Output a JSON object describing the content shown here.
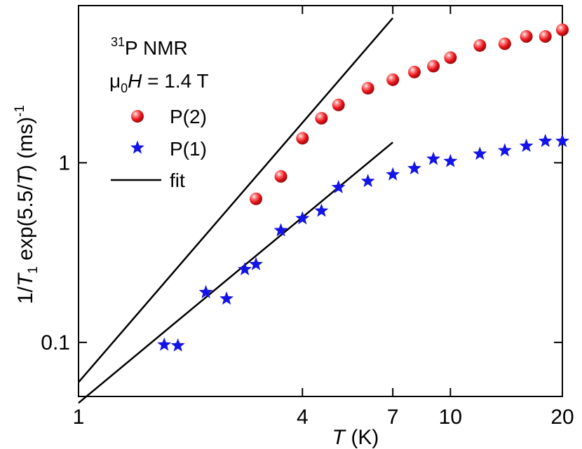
{
  "chart_data": {
    "type": "scatter",
    "x_scale": "log",
    "y_scale": "log",
    "xlim": [
      1,
      20
    ],
    "ylim": [
      0.05,
      7.5
    ],
    "xlabel": {
      "italic": "T",
      "rest": " (K)"
    },
    "ylabel": {
      "p1": "1/",
      "it1": "T",
      "sub1": "1",
      "p2": " exp(5.5/",
      "it2": "T",
      "p3": ") (ms)",
      "sup": "-1"
    },
    "x_ticks": [
      {
        "value": 1,
        "label": "1"
      },
      {
        "value": 4,
        "label": "4"
      },
      {
        "value": 7,
        "label": "7"
      },
      {
        "value": 10,
        "label": "10"
      },
      {
        "value": 20,
        "label": "20"
      }
    ],
    "y_ticks": [
      {
        "value": 0.1,
        "label": "0.1"
      },
      {
        "value": 1,
        "label": "1"
      }
    ],
    "legend_placement": "top-left",
    "annotations": {
      "nmr": {
        "sup": "31",
        "text": "P NMR"
      },
      "field": {
        "mu": "μ",
        "sub": "0",
        "italic": "H",
        "rest": " = 1.4 T"
      }
    },
    "series": [
      {
        "name": "P(2)",
        "marker": "sphere",
        "color": "#e8141b",
        "points": [
          [
            3.0,
            0.63
          ],
          [
            3.5,
            0.84
          ],
          [
            4.0,
            1.37
          ],
          [
            4.5,
            1.77
          ],
          [
            5.0,
            2.1
          ],
          [
            6.0,
            2.6
          ],
          [
            7.0,
            2.9
          ],
          [
            8.0,
            3.2
          ],
          [
            9.0,
            3.45
          ],
          [
            10.0,
            3.85
          ],
          [
            12.0,
            4.5
          ],
          [
            14.0,
            4.6
          ],
          [
            16.0,
            5.05
          ],
          [
            18.0,
            5.05
          ],
          [
            20.0,
            5.5
          ]
        ]
      },
      {
        "name": "P(1)",
        "marker": "star",
        "color": "#1414e6",
        "points": [
          [
            1.7,
            0.097
          ],
          [
            1.85,
            0.096
          ],
          [
            2.2,
            0.19
          ],
          [
            2.5,
            0.175
          ],
          [
            2.8,
            0.255
          ],
          [
            3.0,
            0.272
          ],
          [
            3.5,
            0.42
          ],
          [
            4.0,
            0.49
          ],
          [
            4.5,
            0.54
          ],
          [
            5.0,
            0.73
          ],
          [
            6.0,
            0.79
          ],
          [
            7.0,
            0.86
          ],
          [
            8.0,
            0.93
          ],
          [
            9.0,
            1.05
          ],
          [
            10.0,
            1.02
          ],
          [
            12.0,
            1.12
          ],
          [
            14.0,
            1.17
          ],
          [
            16.0,
            1.24
          ],
          [
            18.0,
            1.32
          ],
          [
            20.0,
            1.32
          ]
        ]
      },
      {
        "name": "fit",
        "marker": "line",
        "color": "#000000",
        "lines": [
          [
            [
              1.0,
              0.06
            ],
            [
              7.0,
              6.4
            ]
          ],
          [
            [
              1.0,
              0.046
            ],
            [
              7.0,
              1.3
            ]
          ]
        ]
      }
    ]
  }
}
